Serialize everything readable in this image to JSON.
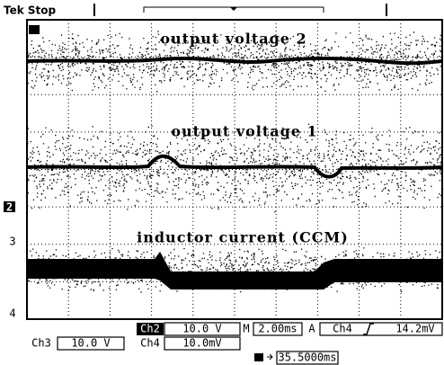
{
  "header": {
    "status": "Tek Stop"
  },
  "traces": [
    {
      "label": "output voltage 2"
    },
    {
      "label": "output voltage 1"
    },
    {
      "label": "inductor current (CCM)"
    }
  ],
  "channel_markers": [
    "2",
    "3",
    "4"
  ],
  "status_bar": {
    "row1": {
      "channel": "Ch2",
      "scale": "10.0 V",
      "time_prefix": "M",
      "time_scale": "2.00ms",
      "trigger_prefix": "A",
      "trigger_channel": "Ch4",
      "trigger_level": "14.2mV"
    },
    "row2": {
      "channel_a": "Ch3",
      "scale_a": "10.0 V",
      "channel_b": "Ch4",
      "scale_b": "10.0mV"
    },
    "row3": {
      "trigger_position": "35.5000ms"
    }
  }
}
